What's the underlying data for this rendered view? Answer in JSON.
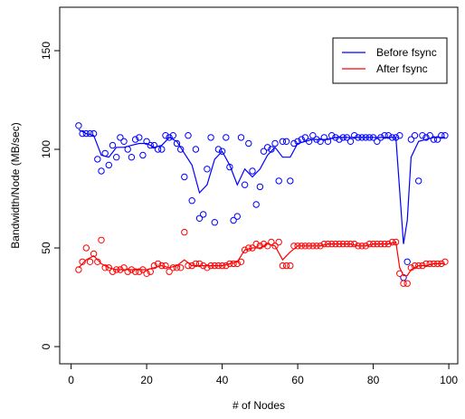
{
  "chart_data": {
    "type": "scatter",
    "title": "",
    "xlabel": "# of Nodes",
    "ylabel": "Bandwidth/Node (MB/sec)",
    "xlim": [
      0,
      100
    ],
    "ylim": [
      0,
      165
    ],
    "x_ticks": [
      0,
      20,
      40,
      60,
      80,
      100
    ],
    "y_ticks": [
      0,
      50,
      100,
      150
    ],
    "grid": false,
    "legend_position": "top-right",
    "series": [
      {
        "name": "Before fsync",
        "color": "#0000ff",
        "markers": "open-circle",
        "line": "smoothed",
        "points": [
          [
            2,
            112
          ],
          [
            3,
            108
          ],
          [
            4,
            108
          ],
          [
            5,
            108
          ],
          [
            6,
            108
          ],
          [
            7,
            95
          ],
          [
            8,
            89
          ],
          [
            9,
            98
          ],
          [
            10,
            92
          ],
          [
            11,
            102
          ],
          [
            12,
            96
          ],
          [
            13,
            106
          ],
          [
            14,
            104
          ],
          [
            15,
            100
          ],
          [
            16,
            96
          ],
          [
            17,
            105
          ],
          [
            18,
            106
          ],
          [
            19,
            97
          ],
          [
            20,
            104
          ],
          [
            21,
            102
          ],
          [
            22,
            102
          ],
          [
            23,
            100
          ],
          [
            24,
            100
          ],
          [
            25,
            107
          ],
          [
            26,
            106
          ],
          [
            27,
            107
          ],
          [
            28,
            103
          ],
          [
            29,
            100
          ],
          [
            30,
            86
          ],
          [
            31,
            107
          ],
          [
            32,
            74
          ],
          [
            33,
            100
          ],
          [
            34,
            65
          ],
          [
            35,
            67
          ],
          [
            36,
            90
          ],
          [
            37,
            106
          ],
          [
            38,
            63
          ],
          [
            39,
            100
          ],
          [
            40,
            99
          ],
          [
            41,
            106
          ],
          [
            42,
            91
          ],
          [
            43,
            64
          ],
          [
            44,
            66
          ],
          [
            45,
            106
          ],
          [
            46,
            82
          ],
          [
            47,
            103
          ],
          [
            48,
            89
          ],
          [
            49,
            72
          ],
          [
            50,
            81
          ],
          [
            51,
            99
          ],
          [
            52,
            101
          ],
          [
            53,
            100
          ],
          [
            54,
            103
          ],
          [
            55,
            84
          ],
          [
            56,
            104
          ],
          [
            57,
            104
          ],
          [
            58,
            84
          ],
          [
            59,
            103
          ],
          [
            60,
            104
          ],
          [
            61,
            105
          ],
          [
            62,
            106
          ],
          [
            63,
            104
          ],
          [
            64,
            107
          ],
          [
            65,
            105
          ],
          [
            66,
            104
          ],
          [
            67,
            106
          ],
          [
            68,
            104
          ],
          [
            69,
            107
          ],
          [
            70,
            106
          ],
          [
            71,
            105
          ],
          [
            72,
            106
          ],
          [
            73,
            106
          ],
          [
            74,
            104
          ],
          [
            75,
            107
          ],
          [
            76,
            106
          ],
          [
            77,
            106
          ],
          [
            78,
            106
          ],
          [
            79,
            106
          ],
          [
            80,
            106
          ],
          [
            81,
            104
          ],
          [
            82,
            106
          ],
          [
            83,
            107
          ],
          [
            84,
            107
          ],
          [
            85,
            106
          ],
          [
            86,
            106
          ],
          [
            87,
            107
          ],
          [
            88,
            35
          ],
          [
            89,
            43
          ],
          [
            90,
            105
          ],
          [
            91,
            107
          ],
          [
            92,
            84
          ],
          [
            93,
            107
          ],
          [
            94,
            106
          ],
          [
            95,
            107
          ],
          [
            96,
            105
          ],
          [
            97,
            105
          ],
          [
            98,
            107
          ],
          [
            99,
            107
          ]
        ],
        "smoothed": [
          [
            2,
            110
          ],
          [
            4,
            108
          ],
          [
            6,
            107
          ],
          [
            8,
            97
          ],
          [
            10,
            96
          ],
          [
            12,
            101
          ],
          [
            14,
            101
          ],
          [
            16,
            102
          ],
          [
            18,
            103
          ],
          [
            20,
            103
          ],
          [
            22,
            101
          ],
          [
            24,
            102
          ],
          [
            26,
            106
          ],
          [
            28,
            104
          ],
          [
            30,
            98
          ],
          [
            32,
            92
          ],
          [
            34,
            78
          ],
          [
            36,
            82
          ],
          [
            38,
            95
          ],
          [
            40,
            99
          ],
          [
            42,
            92
          ],
          [
            44,
            82
          ],
          [
            46,
            90
          ],
          [
            48,
            86
          ],
          [
            50,
            90
          ],
          [
            52,
            97
          ],
          [
            54,
            101
          ],
          [
            56,
            96
          ],
          [
            58,
            96
          ],
          [
            60,
            103
          ],
          [
            62,
            104
          ],
          [
            64,
            105
          ],
          [
            66,
            105
          ],
          [
            68,
            105
          ],
          [
            70,
            106
          ],
          [
            72,
            106
          ],
          [
            74,
            106
          ],
          [
            76,
            106
          ],
          [
            78,
            106
          ],
          [
            80,
            106
          ],
          [
            82,
            106
          ],
          [
            84,
            106
          ],
          [
            86,
            106
          ],
          [
            88,
            52
          ],
          [
            89,
            64
          ],
          [
            90,
            96
          ],
          [
            92,
            104
          ],
          [
            94,
            105
          ],
          [
            96,
            106
          ],
          [
            98,
            106
          ],
          [
            99,
            106
          ]
        ]
      },
      {
        "name": "After fsync",
        "color": "#ff0000",
        "markers": "open-circle",
        "line": "smoothed",
        "points": [
          [
            2,
            39
          ],
          [
            3,
            43
          ],
          [
            4,
            50
          ],
          [
            5,
            43
          ],
          [
            6,
            47
          ],
          [
            7,
            43
          ],
          [
            8,
            54
          ],
          [
            9,
            40
          ],
          [
            10,
            40
          ],
          [
            11,
            38
          ],
          [
            12,
            39
          ],
          [
            13,
            39
          ],
          [
            14,
            40
          ],
          [
            15,
            38
          ],
          [
            16,
            39
          ],
          [
            17,
            38
          ],
          [
            18,
            38
          ],
          [
            19,
            39
          ],
          [
            20,
            37
          ],
          [
            21,
            38
          ],
          [
            22,
            41
          ],
          [
            23,
            42
          ],
          [
            24,
            41
          ],
          [
            25,
            41
          ],
          [
            26,
            38
          ],
          [
            27,
            40
          ],
          [
            28,
            40
          ],
          [
            29,
            40
          ],
          [
            30,
            58
          ],
          [
            31,
            41
          ],
          [
            32,
            41
          ],
          [
            33,
            42
          ],
          [
            34,
            42
          ],
          [
            35,
            41
          ],
          [
            36,
            40
          ],
          [
            37,
            41
          ],
          [
            38,
            41
          ],
          [
            39,
            41
          ],
          [
            40,
            41
          ],
          [
            41,
            41
          ],
          [
            42,
            42
          ],
          [
            43,
            42
          ],
          [
            44,
            42
          ],
          [
            45,
            43
          ],
          [
            46,
            49
          ],
          [
            47,
            50
          ],
          [
            48,
            50
          ],
          [
            49,
            52
          ],
          [
            50,
            51
          ],
          [
            51,
            52
          ],
          [
            52,
            51
          ],
          [
            53,
            53
          ],
          [
            54,
            51
          ],
          [
            55,
            53
          ],
          [
            56,
            41
          ],
          [
            57,
            41
          ],
          [
            58,
            41
          ],
          [
            59,
            51
          ],
          [
            60,
            51
          ],
          [
            61,
            51
          ],
          [
            62,
            51
          ],
          [
            63,
            51
          ],
          [
            64,
            51
          ],
          [
            65,
            51
          ],
          [
            66,
            51
          ],
          [
            67,
            52
          ],
          [
            68,
            52
          ],
          [
            69,
            52
          ],
          [
            70,
            52
          ],
          [
            71,
            52
          ],
          [
            72,
            52
          ],
          [
            73,
            52
          ],
          [
            74,
            52
          ],
          [
            75,
            52
          ],
          [
            76,
            51
          ],
          [
            77,
            51
          ],
          [
            78,
            51
          ],
          [
            79,
            52
          ],
          [
            80,
            52
          ],
          [
            81,
            52
          ],
          [
            82,
            52
          ],
          [
            83,
            52
          ],
          [
            84,
            52
          ],
          [
            85,
            53
          ],
          [
            86,
            53
          ],
          [
            87,
            37
          ],
          [
            88,
            32
          ],
          [
            89,
            32
          ],
          [
            90,
            40
          ],
          [
            91,
            41
          ],
          [
            92,
            41
          ],
          [
            93,
            41
          ],
          [
            94,
            42
          ],
          [
            95,
            42
          ],
          [
            96,
            42
          ],
          [
            97,
            42
          ],
          [
            98,
            42
          ],
          [
            99,
            43
          ]
        ],
        "smoothed": [
          [
            2,
            40
          ],
          [
            4,
            44
          ],
          [
            6,
            46
          ],
          [
            8,
            42
          ],
          [
            10,
            40
          ],
          [
            12,
            39
          ],
          [
            14,
            39
          ],
          [
            16,
            39
          ],
          [
            18,
            39
          ],
          [
            20,
            39
          ],
          [
            22,
            40
          ],
          [
            24,
            41
          ],
          [
            26,
            40
          ],
          [
            28,
            41
          ],
          [
            30,
            44
          ],
          [
            32,
            41
          ],
          [
            34,
            41
          ],
          [
            36,
            41
          ],
          [
            38,
            41
          ],
          [
            40,
            41
          ],
          [
            42,
            42
          ],
          [
            44,
            43
          ],
          [
            46,
            49
          ],
          [
            48,
            50
          ],
          [
            50,
            50
          ],
          [
            52,
            52
          ],
          [
            54,
            51
          ],
          [
            56,
            44
          ],
          [
            58,
            48
          ],
          [
            60,
            51
          ],
          [
            62,
            51
          ],
          [
            64,
            51
          ],
          [
            66,
            51
          ],
          [
            68,
            52
          ],
          [
            70,
            52
          ],
          [
            72,
            52
          ],
          [
            74,
            52
          ],
          [
            76,
            51
          ],
          [
            78,
            51
          ],
          [
            80,
            52
          ],
          [
            82,
            52
          ],
          [
            84,
            52
          ],
          [
            86,
            53
          ],
          [
            87,
            40
          ],
          [
            88,
            36
          ],
          [
            89,
            36
          ],
          [
            90,
            39
          ],
          [
            92,
            41
          ],
          [
            94,
            41
          ],
          [
            96,
            42
          ],
          [
            98,
            42
          ],
          [
            99,
            42
          ]
        ]
      }
    ]
  }
}
